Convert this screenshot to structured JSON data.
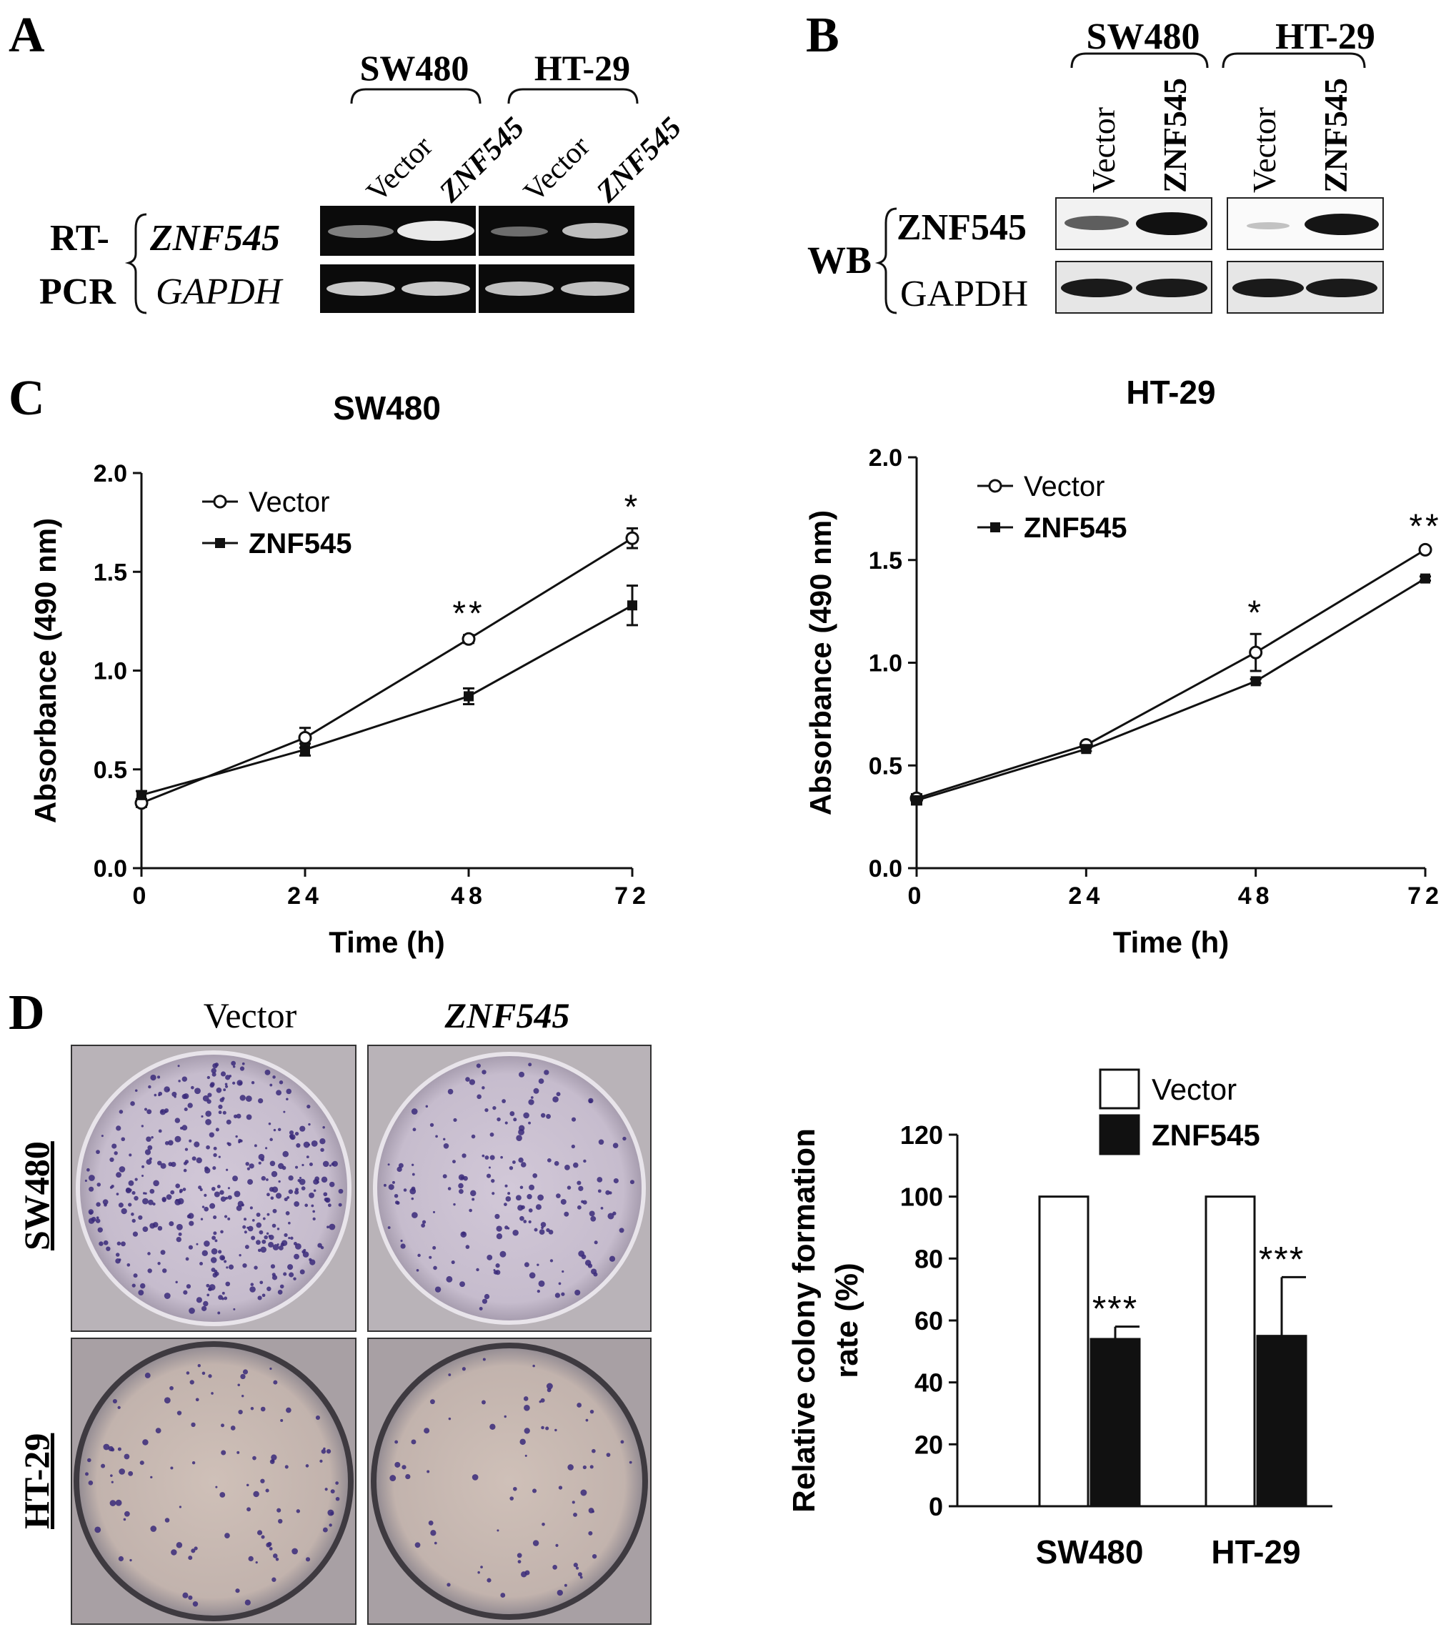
{
  "panels": {
    "a": "A",
    "b": "B",
    "c": "C",
    "d": "D"
  },
  "panel_a": {
    "cell_lines": [
      "SW480",
      "HT-29"
    ],
    "lanes": [
      "Vector",
      "ZNF545",
      "Vector",
      "ZNF545"
    ],
    "method_line1": "RT-",
    "method_line2": "PCR",
    "gene_target": "ZNF545",
    "gene_control": "GAPDH"
  },
  "panel_b": {
    "cell_lines": [
      "SW480",
      "HT-29"
    ],
    "lanes": [
      "Vector",
      "ZNF545",
      "Vector",
      "ZNF545"
    ],
    "method": "WB",
    "protein_target": "ZNF545",
    "protein_control": "GAPDH"
  },
  "panel_d": {
    "col_vector": "Vector",
    "col_znf": "ZNF545",
    "row_sw": "SW480",
    "row_ht": "HT-29"
  },
  "colors": {
    "ink": "#111111",
    "gel": "#0b0b0b",
    "plate_bg": "#c9bfcf",
    "colony": "#3a2a7a"
  },
  "chart_data": [
    {
      "type": "line",
      "title": "SW480",
      "xlabel": "Time (h)",
      "ylabel": "Absorbance (490 nm)",
      "x": [
        0,
        24,
        48,
        72
      ],
      "xlim": [
        0,
        72
      ],
      "ylim": [
        0,
        2.0
      ],
      "yticks": [
        "0.0",
        "0.5",
        "1.0",
        "1.5",
        "2.0"
      ],
      "xticks": [
        "0",
        "24",
        "48",
        "72"
      ],
      "series": [
        {
          "name": "Vector",
          "marker": "open-circle",
          "values": [
            0.33,
            0.66,
            1.16,
            1.67
          ],
          "errors": [
            0.02,
            0.05,
            0.02,
            0.05
          ]
        },
        {
          "name": "ZNF545",
          "marker": "filled-square",
          "values": [
            0.37,
            0.6,
            0.87,
            1.33
          ],
          "errors": [
            0.02,
            0.03,
            0.04,
            0.1
          ]
        }
      ],
      "annotations": [
        "",
        "",
        "**",
        "*"
      ]
    },
    {
      "type": "line",
      "title": "HT-29",
      "xlabel": "Time (h)",
      "ylabel": "Absorbance (490 nm)",
      "x": [
        0,
        24,
        48,
        72
      ],
      "xlim": [
        0,
        72
      ],
      "ylim": [
        0,
        2.0
      ],
      "yticks": [
        "0.0",
        "0.5",
        "1.0",
        "1.5",
        "2.0"
      ],
      "xticks": [
        "0",
        "24",
        "48",
        "72"
      ],
      "series": [
        {
          "name": "Vector",
          "marker": "open-circle",
          "values": [
            0.34,
            0.6,
            1.05,
            1.55
          ],
          "errors": [
            0.02,
            0.01,
            0.09,
            0.01
          ]
        },
        {
          "name": "ZNF545",
          "marker": "filled-square",
          "values": [
            0.33,
            0.58,
            0.91,
            1.41
          ],
          "errors": [
            0.02,
            0.01,
            0.01,
            0.01
          ]
        }
      ],
      "annotations": [
        "",
        "",
        "*",
        "**"
      ]
    },
    {
      "type": "bar",
      "categories": [
        "SW480",
        "HT-29"
      ],
      "ylabel": "Relative colony formation rate (%)",
      "ylim": [
        0,
        120
      ],
      "yticks": [
        "0",
        "20",
        "40",
        "60",
        "80",
        "100",
        "120"
      ],
      "series": [
        {
          "name": "Vector",
          "fill": "white",
          "values": [
            100,
            100
          ],
          "errors": [
            0,
            0
          ]
        },
        {
          "name": "ZNF545",
          "fill": "black",
          "values": [
            54,
            55
          ],
          "errors": [
            4,
            19
          ]
        }
      ],
      "annotations": [
        "***",
        "***"
      ]
    }
  ]
}
